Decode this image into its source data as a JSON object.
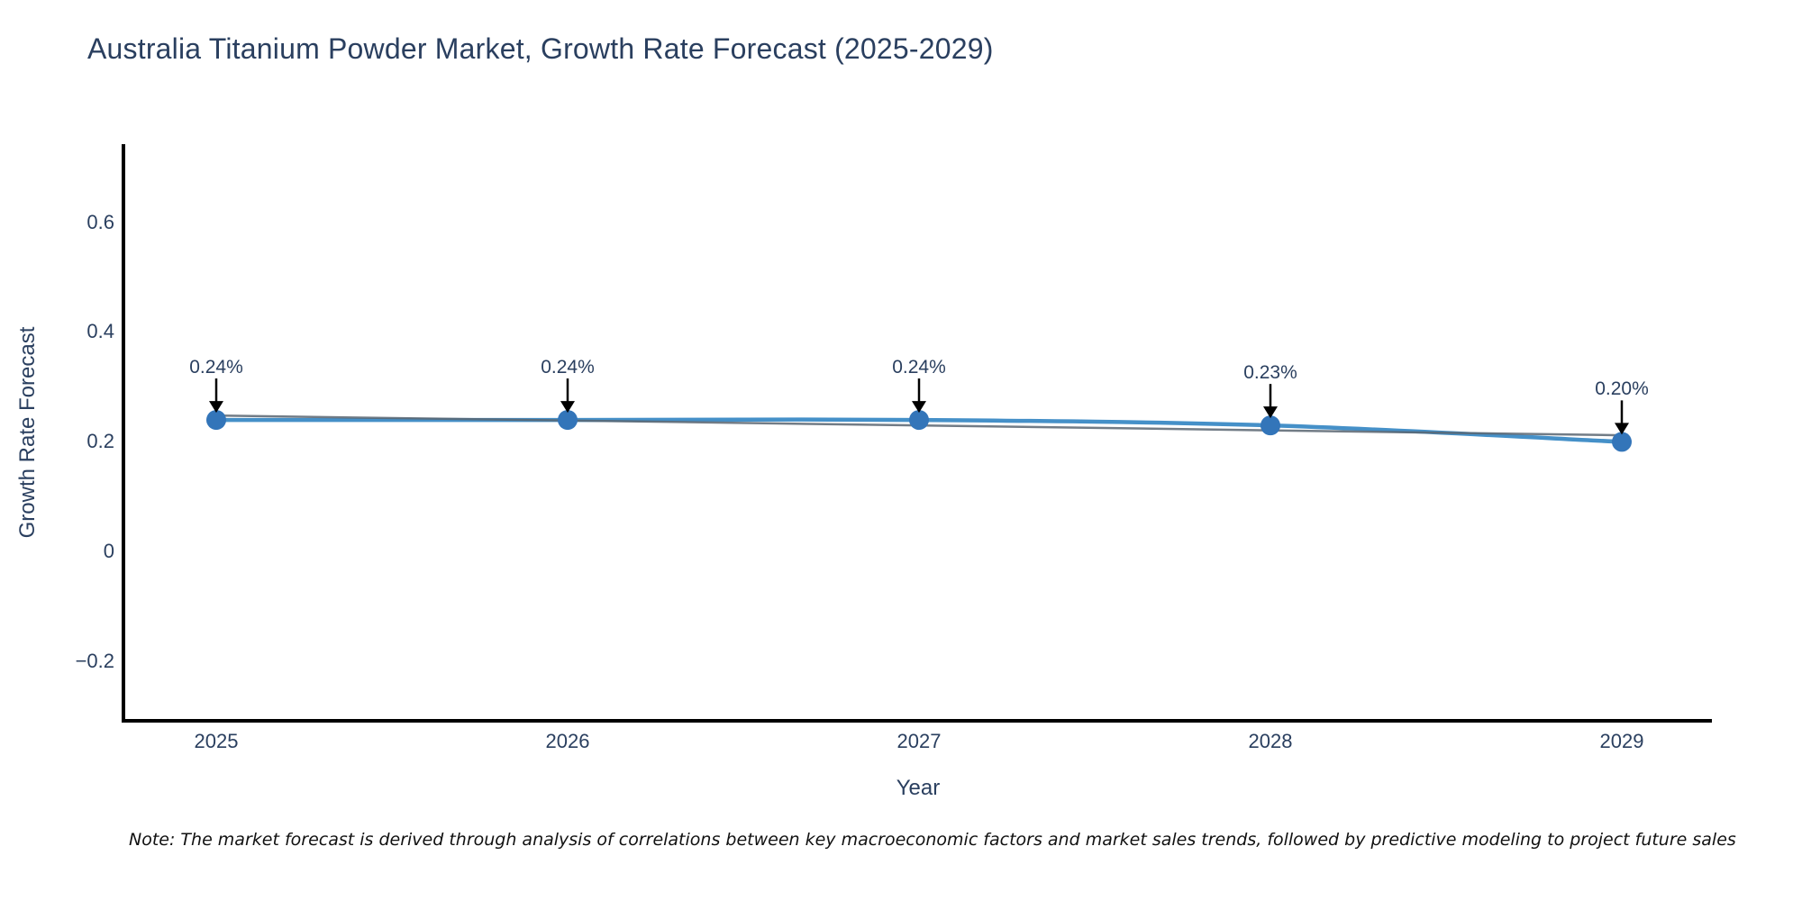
{
  "note": {
    "text": "Note: The market forecast is derived through analysis of correlations between key macroeconomic factors and market sales trends, followed by predictive modeling to project future sales"
  },
  "chart_data": {
    "type": "line",
    "title": "Australia Titanium Powder Market, Growth Rate Forecast (2025-2029)",
    "xlabel": "Year",
    "ylabel": "Growth Rate Forecast",
    "categories": [
      "2025",
      "2026",
      "2027",
      "2028",
      "2029"
    ],
    "values": [
      0.24,
      0.24,
      0.24,
      0.23,
      0.2
    ],
    "point_labels": [
      "0.24%",
      "0.24%",
      "0.24%",
      "0.23%",
      "0.20%"
    ],
    "y_tick_labels": [
      "0.6",
      "0.4",
      "0.2",
      "0",
      "−0.2"
    ],
    "y_tick_values": [
      0.6,
      0.4,
      0.2,
      0,
      -0.2
    ],
    "ylim": [
      -0.31,
      0.74
    ],
    "grid": false,
    "legend_visible": false,
    "has_trend_line": true,
    "annotation_arrows": true,
    "colors": {
      "line": "#4590c8",
      "marker": "#3375b9",
      "trend": "#5a6672",
      "axis": "#000000",
      "text": "#2a3f5f",
      "arrow": "#000000",
      "background": "#ffffff"
    }
  }
}
